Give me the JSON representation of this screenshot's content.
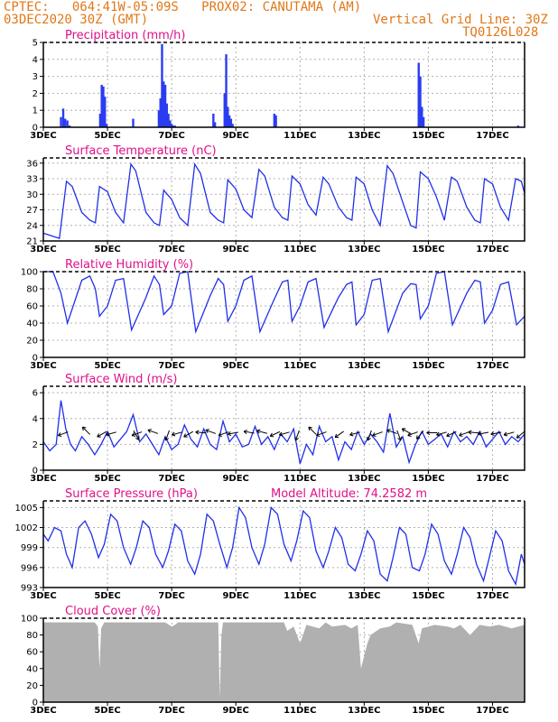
{
  "header": {
    "line1_left": "CPTEC:   064:41W-05:09S   PROX02: CANUTAMA (AM)",
    "line2_left": "03DEC2020 30Z (GMT)",
    "line2_right": "Vertical Grid Line: 30Z",
    "line3_right": "TQ0126L028"
  },
  "colors": {
    "series": "#2030e8",
    "bar": "#2b3cf0",
    "cloud": "#b0b0b0",
    "title": "#e0108a",
    "header": "#e07818"
  },
  "chart_data": [
    {
      "id": "precip",
      "type": "bar",
      "title": "Precipitation (mm/h)",
      "ylim": [
        0,
        5
      ],
      "yticks": [
        0,
        1,
        2,
        3,
        4,
        5
      ],
      "x": [
        3.55,
        3.62,
        3.68,
        3.75,
        3.82,
        4.77,
        4.82,
        4.87,
        4.92,
        4.97,
        5.8,
        6.6,
        6.65,
        6.7,
        6.75,
        6.8,
        6.85,
        6.9,
        6.95,
        7.0,
        7.05,
        7.1,
        8.3,
        8.35,
        8.65,
        8.7,
        8.75,
        8.8,
        8.85,
        8.9,
        10.2,
        10.25,
        14.7,
        14.75,
        14.8,
        14.85,
        17.8
      ],
      "values": [
        0.6,
        1.1,
        0.5,
        0.4,
        0.1,
        0.8,
        2.5,
        2.4,
        1.8,
        0.2,
        0.5,
        1.0,
        1.7,
        4.9,
        2.7,
        2.5,
        1.4,
        0.8,
        0.4,
        0.2,
        0.1,
        0.1,
        0.8,
        0.3,
        2.0,
        4.3,
        1.2,
        0.7,
        0.5,
        0.2,
        0.8,
        0.7,
        3.8,
        3.0,
        1.2,
        0.6,
        0.1
      ],
      "xlabels": [
        "3DEC",
        "5DEC",
        "7DEC",
        "9DEC",
        "11DEC",
        "13DEC",
        "15DEC",
        "17DEC"
      ]
    },
    {
      "id": "temp",
      "type": "line",
      "title": "Surface Temperature (nC)",
      "ylim": [
        21,
        37
      ],
      "yticks": [
        21,
        24,
        27,
        30,
        33,
        36
      ],
      "x": [
        3.0,
        3.25,
        3.5,
        3.72,
        3.9,
        4.2,
        4.45,
        4.62,
        4.75,
        5.0,
        5.25,
        5.5,
        5.73,
        5.88,
        6.2,
        6.45,
        6.62,
        6.75,
        7.0,
        7.25,
        7.5,
        7.72,
        7.9,
        8.2,
        8.45,
        8.62,
        8.75,
        9.0,
        9.25,
        9.5,
        9.72,
        9.9,
        10.2,
        10.45,
        10.62,
        10.75,
        11.0,
        11.25,
        11.5,
        11.72,
        11.9,
        12.2,
        12.45,
        12.62,
        12.75,
        13.0,
        13.25,
        13.5,
        13.72,
        13.9,
        14.2,
        14.45,
        14.62,
        14.75,
        15.0,
        15.25,
        15.5,
        15.72,
        15.9,
        16.2,
        16.45,
        16.62,
        16.75,
        17.0,
        17.25,
        17.5,
        17.72,
        17.9,
        18.0
      ],
      "values": [
        22.5,
        22.0,
        21.5,
        32.5,
        31.5,
        26.5,
        25.0,
        24.5,
        31.5,
        30.5,
        26.5,
        24.5,
        35.8,
        34.5,
        26.5,
        24.5,
        24.0,
        30.8,
        29.0,
        25.5,
        24.0,
        35.8,
        34.0,
        26.5,
        25.0,
        24.5,
        32.8,
        31.0,
        27.0,
        25.5,
        34.8,
        33.5,
        27.5,
        25.5,
        25.0,
        33.5,
        32.0,
        28.0,
        26.0,
        33.3,
        32.0,
        27.5,
        25.5,
        25.0,
        33.3,
        32.0,
        27.0,
        24.0,
        35.5,
        34.0,
        28.5,
        24.0,
        23.5,
        34.3,
        33.0,
        29.5,
        25.0,
        33.3,
        32.5,
        27.5,
        25.0,
        24.5,
        33.0,
        32.0,
        27.5,
        25.0,
        33.0,
        32.5,
        30.2
      ],
      "xlabels": [
        "3DEC",
        "5DEC",
        "7DEC",
        "9DEC",
        "11DEC",
        "13DEC",
        "15DEC",
        "17DEC"
      ]
    },
    {
      "id": "rh",
      "type": "line",
      "title": "Relative Humidity (%)",
      "ylim": [
        0,
        100
      ],
      "yticks": [
        0,
        20,
        40,
        60,
        80,
        100
      ],
      "x": [
        3.0,
        3.3,
        3.55,
        3.75,
        4.2,
        4.45,
        4.62,
        4.75,
        5.0,
        5.25,
        5.5,
        5.75,
        6.2,
        6.45,
        6.62,
        6.75,
        7.0,
        7.25,
        7.5,
        7.75,
        8.2,
        8.45,
        8.62,
        8.75,
        9.0,
        9.25,
        9.5,
        9.75,
        10.2,
        10.45,
        10.62,
        10.75,
        11.0,
        11.25,
        11.5,
        11.75,
        12.2,
        12.45,
        12.62,
        12.75,
        13.0,
        13.25,
        13.5,
        13.75,
        14.2,
        14.45,
        14.62,
        14.75,
        15.0,
        15.25,
        15.5,
        15.75,
        16.2,
        16.45,
        16.62,
        16.75,
        17.0,
        17.25,
        17.5,
        17.75,
        18.0
      ],
      "values": [
        100,
        100,
        75,
        40,
        90,
        95,
        80,
        48,
        60,
        90,
        92,
        32,
        70,
        95,
        85,
        50,
        60,
        98,
        100,
        30,
        72,
        92,
        85,
        42,
        60,
        90,
        95,
        30,
        68,
        88,
        90,
        42,
        60,
        88,
        92,
        35,
        70,
        85,
        88,
        38,
        50,
        90,
        92,
        30,
        75,
        86,
        85,
        45,
        60,
        98,
        100,
        38,
        75,
        90,
        88,
        40,
        55,
        85,
        88,
        38,
        48
      ],
      "xlabels": [
        "3DEC",
        "5DEC",
        "7DEC",
        "9DEC",
        "11DEC",
        "13DEC",
        "15DEC",
        "17DEC"
      ]
    },
    {
      "id": "wind",
      "type": "line",
      "title": "Surface Wind (m/s)",
      "ylim": [
        0,
        6.5
      ],
      "yticks": [
        0,
        2,
        4,
        6
      ],
      "x": [
        3.0,
        3.2,
        3.4,
        3.55,
        3.7,
        3.85,
        4.0,
        4.2,
        4.4,
        4.6,
        4.8,
        5.0,
        5.2,
        5.4,
        5.6,
        5.8,
        6.0,
        6.2,
        6.4,
        6.6,
        6.8,
        7.0,
        7.2,
        7.4,
        7.6,
        7.8,
        8.0,
        8.2,
        8.4,
        8.6,
        8.8,
        9.0,
        9.2,
        9.4,
        9.6,
        9.8,
        10.0,
        10.2,
        10.4,
        10.6,
        10.8,
        11.0,
        11.2,
        11.4,
        11.6,
        11.8,
        12.0,
        12.2,
        12.4,
        12.6,
        12.8,
        13.0,
        13.2,
        13.4,
        13.6,
        13.8,
        14.0,
        14.2,
        14.4,
        14.6,
        14.8,
        15.0,
        15.2,
        15.4,
        15.6,
        15.8,
        16.0,
        16.2,
        16.4,
        16.6,
        16.8,
        17.0,
        17.2,
        17.4,
        17.6,
        17.8,
        18.0
      ],
      "values": [
        2.2,
        1.5,
        2.0,
        5.4,
        3.2,
        2.0,
        1.5,
        2.6,
        2.0,
        1.2,
        2.0,
        3.0,
        1.8,
        2.4,
        3.0,
        4.3,
        2.2,
        2.8,
        2.0,
        1.2,
        2.6,
        1.6,
        2.0,
        3.5,
        2.4,
        1.8,
        3.2,
        2.0,
        1.6,
        3.8,
        2.2,
        2.8,
        1.8,
        2.0,
        3.4,
        2.0,
        2.6,
        1.6,
        2.8,
        2.2,
        3.2,
        0.5,
        2.0,
        1.2,
        3.4,
        2.2,
        2.6,
        0.8,
        2.2,
        1.6,
        3.0,
        2.0,
        2.8,
        2.2,
        1.4,
        4.4,
        1.8,
        2.6,
        0.6,
        2.0,
        3.0,
        2.0,
        2.4,
        2.8,
        1.8,
        3.0,
        2.2,
        2.6,
        2.0,
        3.0,
        1.8,
        2.4,
        3.0,
        2.0,
        2.6,
        2.2,
        2.8
      ],
      "barb_x": [
        3.7,
        4.4,
        4.9,
        5.2,
        5.85,
        6.0,
        6.5,
        6.9,
        7.25,
        7.6,
        8.0,
        8.3,
        8.7,
        9.0,
        9.5,
        9.9,
        10.3,
        10.6,
        10.95,
        11.45,
        11.75,
        12.3,
        12.8,
        13.2,
        13.5,
        13.95,
        14.05,
        14.4,
        14.6,
        14.8,
        15.2,
        15.5,
        15.8,
        16.2,
        16.5,
        16.8,
        17.2,
        17.6,
        17.95
      ],
      "barb_angle": [
        200,
        135,
        210,
        195,
        300,
        200,
        160,
        250,
        195,
        210,
        175,
        160,
        200,
        190,
        170,
        165,
        205,
        195,
        250,
        135,
        200,
        215,
        195,
        250,
        200,
        160,
        290,
        150,
        200,
        230,
        180,
        195,
        205,
        200,
        175,
        190,
        190,
        195,
        220
      ],
      "xlabels": [
        "3DEC",
        "5DEC",
        "7DEC",
        "9DEC",
        "11DEC",
        "13DEC",
        "15DEC",
        "17DEC"
      ]
    },
    {
      "id": "pres",
      "type": "line",
      "title": "Surface Pressure (hPa)",
      "annotation": "Model Altitude: 74.2582 m",
      "ylim": [
        993,
        1006
      ],
      "yticks": [
        993,
        996,
        999,
        1002,
        1005
      ],
      "x": [
        3.0,
        3.15,
        3.35,
        3.55,
        3.72,
        3.9,
        4.1,
        4.3,
        4.5,
        4.72,
        4.9,
        5.1,
        5.3,
        5.5,
        5.72,
        5.9,
        6.1,
        6.3,
        6.5,
        6.72,
        6.9,
        7.1,
        7.3,
        7.5,
        7.72,
        7.9,
        8.1,
        8.3,
        8.5,
        8.72,
        8.9,
        9.1,
        9.3,
        9.5,
        9.72,
        9.9,
        10.1,
        10.3,
        10.5,
        10.72,
        10.9,
        11.1,
        11.3,
        11.5,
        11.72,
        11.9,
        12.1,
        12.3,
        12.5,
        12.72,
        12.9,
        13.1,
        13.3,
        13.5,
        13.72,
        13.9,
        14.1,
        14.3,
        14.5,
        14.72,
        14.9,
        15.1,
        15.3,
        15.5,
        15.72,
        15.9,
        16.1,
        16.3,
        16.5,
        16.72,
        16.9,
        17.1,
        17.3,
        17.5,
        17.72,
        17.9,
        18.0
      ],
      "values": [
        1001.0,
        1000.0,
        1002.0,
        1001.5,
        998.0,
        996.0,
        1002.0,
        1003.0,
        1001.0,
        997.5,
        999.5,
        1004.0,
        1003.0,
        999.0,
        996.5,
        999.0,
        1003.0,
        1002.0,
        998.0,
        996.0,
        998.5,
        1002.5,
        1001.5,
        997.0,
        995.0,
        998.0,
        1004.0,
        1003.0,
        999.5,
        996.0,
        999.0,
        1005.0,
        1003.5,
        999.0,
        996.5,
        999.5,
        1005.0,
        1004.0,
        999.5,
        997.0,
        1000.0,
        1004.5,
        1003.5,
        998.5,
        996.0,
        998.5,
        1002.0,
        1000.5,
        996.5,
        995.5,
        998.0,
        1001.5,
        1000.0,
        995.0,
        994.0,
        997.5,
        1002.0,
        1001.0,
        996.0,
        995.5,
        998.0,
        1002.5,
        1001.0,
        997.0,
        995.0,
        998.0,
        1002.0,
        1000.5,
        996.5,
        994.0,
        997.5,
        1001.5,
        1000.0,
        995.5,
        993.5,
        998.0,
        996.5
      ],
      "xlabels": [
        "3DEC",
        "5DEC",
        "7DEC",
        "9DEC",
        "11DEC",
        "13DEC",
        "15DEC",
        "17DEC"
      ]
    },
    {
      "id": "cloud",
      "type": "area",
      "title": "Cloud Cover (%)",
      "ylim": [
        0,
        100
      ],
      "yticks": [
        0,
        20,
        40,
        60,
        80,
        100
      ],
      "x": [
        3.0,
        4.6,
        4.7,
        4.75,
        4.8,
        4.9,
        6.8,
        7.0,
        7.1,
        7.2,
        8.45,
        8.5,
        8.55,
        8.6,
        10.5,
        10.6,
        10.8,
        11.0,
        11.2,
        11.6,
        11.8,
        12.0,
        12.4,
        12.6,
        12.8,
        12.9,
        13.0,
        13.1,
        13.2,
        13.5,
        13.8,
        14.0,
        14.5,
        14.7,
        14.8,
        15.2,
        15.6,
        15.8,
        16.0,
        16.3,
        16.6,
        16.9,
        17.2,
        17.6,
        18.0
      ],
      "values": [
        95,
        95,
        90,
        40,
        88,
        95,
        95,
        90,
        92,
        95,
        95,
        5,
        80,
        95,
        95,
        85,
        90,
        70,
        92,
        88,
        95,
        90,
        92,
        88,
        92,
        40,
        55,
        70,
        80,
        88,
        90,
        95,
        92,
        70,
        88,
        92,
        90,
        88,
        92,
        80,
        92,
        90,
        92,
        88,
        92
      ],
      "xlabels": [
        "3DEC",
        "5DEC",
        "7DEC",
        "9DEC",
        "11DEC",
        "13DEC",
        "15DEC",
        "17DEC"
      ]
    }
  ]
}
